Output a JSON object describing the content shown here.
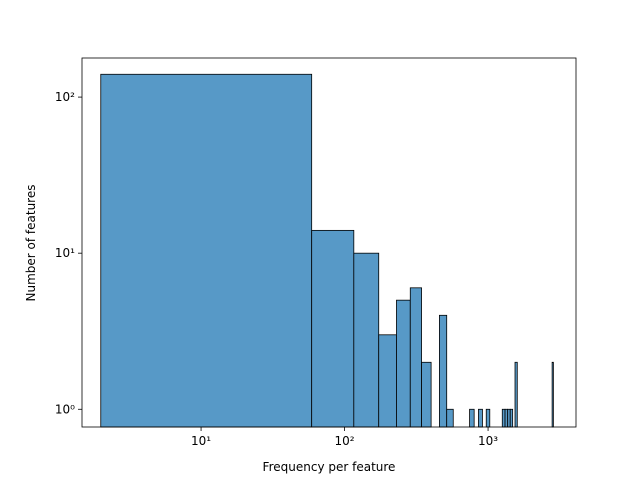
{
  "chart_data": {
    "type": "histogram",
    "xlabel": "Frequency per feature",
    "ylabel": "Number of features",
    "bins": [
      2,
      59,
      116,
      173,
      230,
      287,
      344,
      401,
      458,
      515,
      572,
      629,
      686,
      743,
      800,
      857,
      914,
      971,
      1028,
      1085,
      1142,
      1199,
      1256,
      1313,
      1370,
      1427,
      1484,
      1541,
      1598,
      1655,
      1712,
      1769,
      1826,
      1883,
      1940,
      1997,
      2054,
      2111,
      2168,
      2225,
      2282,
      2339,
      2396,
      2453,
      2510,
      2567,
      2624,
      2681,
      2738,
      2795,
      2852
    ],
    "values": [
      140,
      14,
      10,
      3,
      5,
      6,
      2,
      0,
      4,
      1,
      0,
      0,
      0,
      1,
      0,
      1,
      0,
      1,
      0,
      0,
      0,
      0,
      1,
      1,
      1,
      1,
      0,
      2,
      0,
      0,
      0,
      0,
      0,
      0,
      0,
      0,
      0,
      0,
      0,
      0,
      0,
      0,
      0,
      0,
      0,
      0,
      0,
      0,
      0,
      2
    ],
    "color": "#5799c7",
    "xscale": "log",
    "yscale": "log",
    "xlim": [
      1.48,
      4100
    ],
    "ylim": [
      0.77,
      178
    ],
    "xticks": [
      {
        "value": 10,
        "label": "10¹"
      },
      {
        "value": 100,
        "label": "10²"
      },
      {
        "value": 1000,
        "label": "10³"
      }
    ],
    "yticks": [
      {
        "value": 1,
        "label": "10⁰"
      },
      {
        "value": 10,
        "label": "10¹"
      },
      {
        "value": 100,
        "label": "10²"
      }
    ]
  }
}
